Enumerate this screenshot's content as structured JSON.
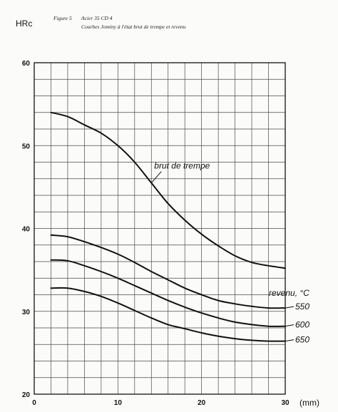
{
  "figure": {
    "number": "Figure 5",
    "material": "Acier 35 CD 4",
    "subtitle": "Courbes Jominy à l'état brut de trempe et revenu"
  },
  "chart_data": {
    "type": "line",
    "title": "Courbes Jominy à l'état brut de trempe et revenu",
    "ylabel": "HRc",
    "xlabel": "(mm)",
    "xlim": [
      0,
      30
    ],
    "ylim": [
      20,
      60
    ],
    "x_ticks": [
      0,
      10,
      20,
      30
    ],
    "y_ticks": [
      20,
      30,
      40,
      50,
      60
    ],
    "grid": true,
    "legend_title": "revenu, °C",
    "series": [
      {
        "name": "brut de trempe",
        "x": [
          2,
          4,
          6,
          8,
          10,
          12,
          14,
          16,
          18,
          20,
          22,
          24,
          26,
          28,
          30
        ],
        "y": [
          54,
          53.5,
          52.5,
          51.5,
          50,
          48,
          45.5,
          43,
          41,
          39.3,
          37.9,
          36.7,
          35.9,
          35.5,
          35.2
        ]
      },
      {
        "name": "550",
        "x": [
          2,
          4,
          6,
          8,
          10,
          12,
          14,
          16,
          18,
          20,
          22,
          24,
          26,
          28,
          30
        ],
        "y": [
          39.2,
          39,
          38.4,
          37.7,
          36.9,
          35.9,
          34.8,
          33.8,
          32.8,
          32,
          31.3,
          30.9,
          30.6,
          30.4,
          30.4
        ]
      },
      {
        "name": "600",
        "x": [
          2,
          4,
          6,
          8,
          10,
          12,
          14,
          16,
          18,
          20,
          22,
          24,
          26,
          28,
          30
        ],
        "y": [
          36.2,
          36.1,
          35.5,
          34.8,
          34,
          33.1,
          32.2,
          31.3,
          30.5,
          29.8,
          29.2,
          28.7,
          28.4,
          28.2,
          28.2
        ]
      },
      {
        "name": "650",
        "x": [
          2,
          4,
          6,
          8,
          10,
          12,
          14,
          16,
          18,
          20,
          22,
          24,
          26,
          28,
          30
        ],
        "y": [
          32.8,
          32.8,
          32.4,
          31.8,
          31,
          30.1,
          29.2,
          28.4,
          27.9,
          27.4,
          27,
          26.7,
          26.5,
          26.4,
          26.4
        ]
      }
    ]
  }
}
